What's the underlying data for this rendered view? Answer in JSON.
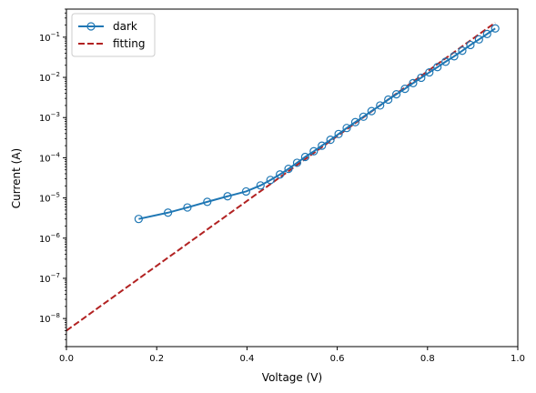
{
  "chart_data": {
    "type": "line",
    "title": "",
    "xlabel": "Voltage (V)",
    "ylabel": "Current (A)",
    "xlim": [
      0,
      1.0
    ],
    "ylim": [
      2e-09,
      0.5
    ],
    "yscale": "log",
    "grid": false,
    "legend_position": "top-left",
    "x_ticks": [
      {
        "value": 0,
        "label": "0.0"
      },
      {
        "value": 0.2,
        "label": "0.2"
      },
      {
        "value": 0.4,
        "label": "0.4"
      },
      {
        "value": 0.6,
        "label": "0.6"
      },
      {
        "value": 0.8,
        "label": "0.8"
      },
      {
        "value": 1.0,
        "label": "1.0"
      }
    ],
    "y_ticks": [
      {
        "exp": -8,
        "base": "10",
        "sup": "−8"
      },
      {
        "exp": -7,
        "base": "10",
        "sup": "−7"
      },
      {
        "exp": -6,
        "base": "10",
        "sup": "−6"
      },
      {
        "exp": -5,
        "base": "10",
        "sup": "−5"
      },
      {
        "exp": -4,
        "base": "10",
        "sup": "−4"
      },
      {
        "exp": -3,
        "base": "10",
        "sup": "−3"
      },
      {
        "exp": -2,
        "base": "10",
        "sup": "−2"
      },
      {
        "exp": -1,
        "base": "10",
        "sup": "−1"
      }
    ],
    "series": [
      {
        "name": "dark",
        "color": "#1f77b4",
        "style": "solid-line-open-circle-markers",
        "x": [
          0.16,
          0.225,
          0.268,
          0.312,
          0.357,
          0.398,
          0.43,
          0.452,
          0.473,
          0.492,
          0.511,
          0.529,
          0.548,
          0.566,
          0.585,
          0.603,
          0.621,
          0.64,
          0.658,
          0.676,
          0.695,
          0.713,
          0.731,
          0.75,
          0.768,
          0.786,
          0.804,
          0.822,
          0.84,
          0.859,
          0.877,
          0.895,
          0.914,
          0.932,
          0.95
        ],
        "y": [
          3e-06,
          4.3e-06,
          5.8e-06,
          8e-06,
          1.1e-05,
          1.45e-05,
          2.05e-05,
          2.8e-05,
          3.85e-05,
          5.3e-05,
          7.5e-05,
          0.000105,
          0.000145,
          0.0002,
          0.00028,
          0.00039,
          0.00055,
          0.00077,
          0.00105,
          0.00145,
          0.002,
          0.0028,
          0.0038,
          0.0052,
          0.0072,
          0.0098,
          0.0133,
          0.018,
          0.0245,
          0.0335,
          0.046,
          0.064,
          0.088,
          0.12,
          0.165
        ]
      },
      {
        "name": "fitting",
        "color": "#b22222",
        "style": "dashed-line",
        "x": [
          0,
          0.95
        ],
        "y": [
          5e-09,
          0.23
        ]
      }
    ]
  }
}
